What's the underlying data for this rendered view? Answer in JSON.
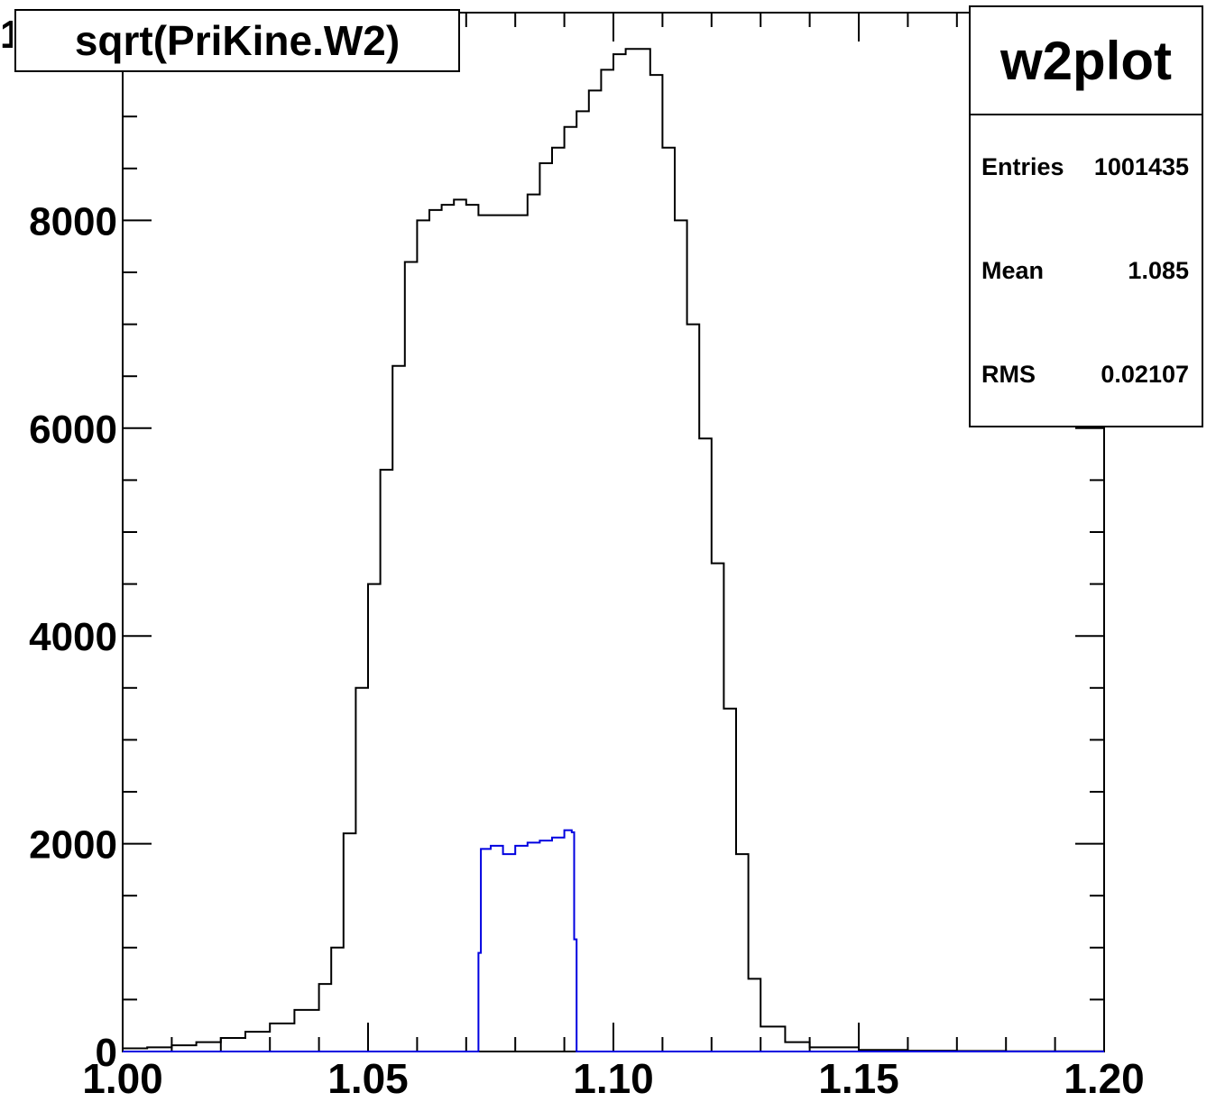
{
  "chart_data": {
    "type": "histogram",
    "title": "sqrt(PriKine.W2)",
    "x_range": [
      1.0,
      1.2
    ],
    "y_range": [
      0,
      10000
    ],
    "x_ticks": [
      "1.00",
      "1.05",
      "1.10",
      "1.15",
      "1.20"
    ],
    "x_tick_values": [
      1.0,
      1.05,
      1.1,
      1.15,
      1.2
    ],
    "y_ticks": [
      "0",
      "2000",
      "4000",
      "6000",
      "8000"
    ],
    "y_tick_values": [
      0,
      2000,
      4000,
      6000,
      8000
    ],
    "y_axis_top_label_partial": "1",
    "grid": false,
    "series": [
      {
        "color": "#000000",
        "points": [
          [
            1.0,
            30
          ],
          [
            1.005,
            40
          ],
          [
            1.01,
            60
          ],
          [
            1.015,
            90
          ],
          [
            1.02,
            130
          ],
          [
            1.025,
            190
          ],
          [
            1.03,
            270
          ],
          [
            1.035,
            400
          ],
          [
            1.04,
            650
          ],
          [
            1.0425,
            1000
          ],
          [
            1.045,
            2100
          ],
          [
            1.0475,
            3500
          ],
          [
            1.05,
            4500
          ],
          [
            1.0525,
            5600
          ],
          [
            1.055,
            6600
          ],
          [
            1.0575,
            7600
          ],
          [
            1.06,
            8000
          ],
          [
            1.0625,
            8100
          ],
          [
            1.065,
            8150
          ],
          [
            1.0675,
            8200
          ],
          [
            1.07,
            8150
          ],
          [
            1.0725,
            8050
          ],
          [
            1.075,
            8050
          ],
          [
            1.0775,
            8050
          ],
          [
            1.08,
            8050
          ],
          [
            1.0825,
            8250
          ],
          [
            1.085,
            8550
          ],
          [
            1.0875,
            8700
          ],
          [
            1.09,
            8900
          ],
          [
            1.0925,
            9050
          ],
          [
            1.095,
            9250
          ],
          [
            1.0975,
            9450
          ],
          [
            1.1,
            9600
          ],
          [
            1.1025,
            9650
          ],
          [
            1.105,
            9650
          ],
          [
            1.1075,
            9400
          ],
          [
            1.11,
            8700
          ],
          [
            1.1125,
            8000
          ],
          [
            1.115,
            7000
          ],
          [
            1.1175,
            5900
          ],
          [
            1.12,
            4700
          ],
          [
            1.1225,
            3300
          ],
          [
            1.125,
            1900
          ],
          [
            1.1275,
            700
          ],
          [
            1.13,
            240
          ],
          [
            1.135,
            90
          ],
          [
            1.14,
            40
          ],
          [
            1.15,
            15
          ],
          [
            1.16,
            8
          ],
          [
            1.17,
            5
          ],
          [
            1.18,
            3
          ],
          [
            1.19,
            2
          ],
          [
            1.2,
            2
          ]
        ]
      },
      {
        "color": "#0000e0",
        "points": [
          [
            1.0,
            0
          ],
          [
            1.072,
            0
          ],
          [
            1.0725,
            950
          ],
          [
            1.073,
            1950
          ],
          [
            1.075,
            1980
          ],
          [
            1.0775,
            1900
          ],
          [
            1.08,
            1980
          ],
          [
            1.0825,
            2010
          ],
          [
            1.085,
            2030
          ],
          [
            1.0875,
            2060
          ],
          [
            1.09,
            2130
          ],
          [
            1.0915,
            2110
          ],
          [
            1.092,
            1080
          ],
          [
            1.0925,
            0
          ],
          [
            1.2,
            0
          ]
        ]
      }
    ]
  },
  "title_box": {
    "text": "sqrt(PriKine.W2)"
  },
  "stats": {
    "name": "w2plot",
    "rows": [
      {
        "label": "Entries",
        "value": "1001435"
      },
      {
        "label": "Mean",
        "value": "1.085"
      },
      {
        "label": "RMS",
        "value": "0.02107"
      }
    ]
  }
}
